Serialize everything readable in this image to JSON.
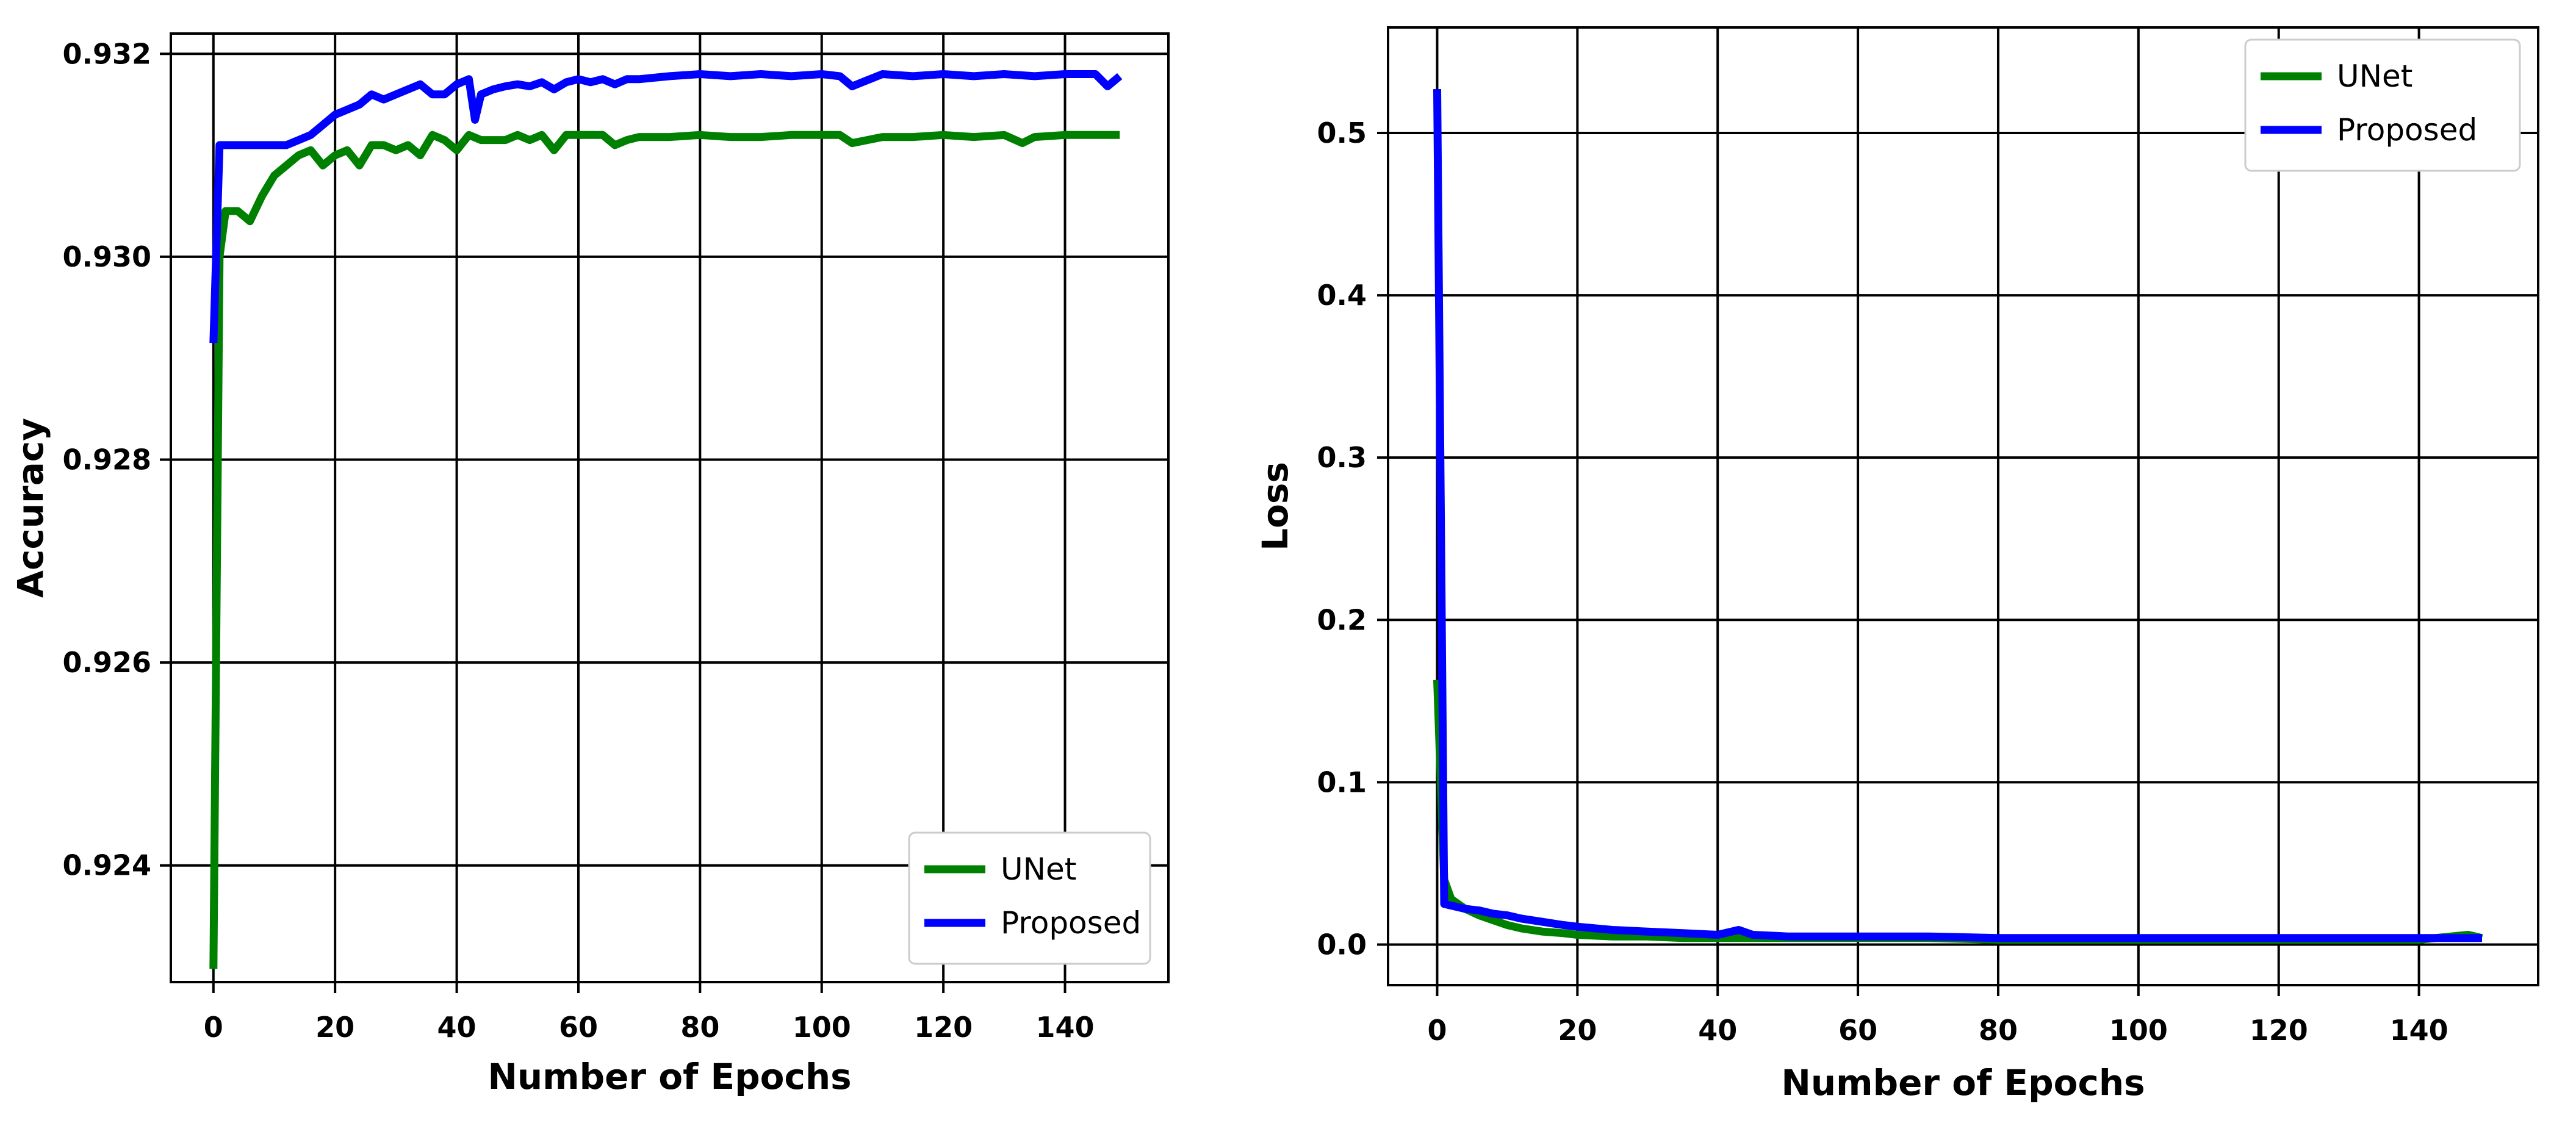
{
  "colors": {
    "unet": "#008000",
    "proposed": "#0000ff",
    "grid": "#000000"
  },
  "chart_data": [
    {
      "type": "line",
      "title": "",
      "xlabel": "Number of Epochs",
      "ylabel": "Accuracy",
      "xlim": [
        -7,
        157
      ],
      "ylim": [
        0.92285,
        0.9322
      ],
      "xticks": [
        0,
        20,
        40,
        60,
        80,
        100,
        120,
        140
      ],
      "xtick_labels": [
        "0",
        "20",
        "40",
        "60",
        "80",
        "100",
        "120",
        "140"
      ],
      "yticks": [
        0.924,
        0.926,
        0.928,
        0.93,
        0.932
      ],
      "ytick_labels": [
        "0.924",
        "0.926",
        "0.928",
        "0.930",
        "0.932"
      ],
      "grid": true,
      "legend": {
        "position": "lower-right",
        "entries": [
          "UNet",
          "Proposed"
        ]
      },
      "series": [
        {
          "name": "UNet",
          "color": "#008000",
          "x": [
            0,
            1,
            2,
            4,
            6,
            8,
            10,
            12,
            14,
            16,
            18,
            20,
            22,
            24,
            26,
            28,
            30,
            32,
            34,
            36,
            38,
            40,
            42,
            44,
            46,
            48,
            50,
            52,
            54,
            56,
            58,
            60,
            62,
            64,
            66,
            68,
            70,
            75,
            80,
            85,
            90,
            95,
            100,
            103,
            105,
            110,
            115,
            120,
            125,
            130,
            133,
            135,
            140,
            145,
            149
          ],
          "values": [
            0.92298,
            0.93,
            0.93045,
            0.93045,
            0.93035,
            0.9306,
            0.9308,
            0.9309,
            0.931,
            0.93105,
            0.9309,
            0.931,
            0.93105,
            0.9309,
            0.9311,
            0.9311,
            0.93105,
            0.9311,
            0.931,
            0.9312,
            0.93115,
            0.93105,
            0.9312,
            0.93115,
            0.93115,
            0.93115,
            0.9312,
            0.93115,
            0.9312,
            0.93105,
            0.9312,
            0.9312,
            0.9312,
            0.9312,
            0.9311,
            0.93115,
            0.93118,
            0.93118,
            0.9312,
            0.93118,
            0.93118,
            0.9312,
            0.9312,
            0.9312,
            0.93112,
            0.93118,
            0.93118,
            0.9312,
            0.93118,
            0.9312,
            0.93112,
            0.93118,
            0.9312,
            0.9312,
            0.9312
          ]
        },
        {
          "name": "Proposed",
          "color": "#0000ff",
          "x": [
            0,
            1,
            2,
            5,
            10,
            12,
            14,
            16,
            18,
            20,
            22,
            24,
            26,
            28,
            30,
            32,
            34,
            36,
            38,
            40,
            42,
            43,
            44,
            46,
            48,
            50,
            52,
            54,
            56,
            58,
            60,
            62,
            64,
            66,
            68,
            70,
            75,
            80,
            85,
            90,
            95,
            100,
            103,
            105,
            110,
            115,
            120,
            125,
            130,
            135,
            140,
            145,
            147,
            149
          ],
          "values": [
            0.92915,
            0.9311,
            0.9311,
            0.9311,
            0.9311,
            0.9311,
            0.93115,
            0.9312,
            0.9313,
            0.9314,
            0.93145,
            0.9315,
            0.9316,
            0.93155,
            0.9316,
            0.93165,
            0.9317,
            0.9316,
            0.9316,
            0.9317,
            0.93175,
            0.93135,
            0.9316,
            0.93165,
            0.93168,
            0.9317,
            0.93168,
            0.93172,
            0.93165,
            0.93172,
            0.93175,
            0.93172,
            0.93175,
            0.9317,
            0.93175,
            0.93175,
            0.93178,
            0.9318,
            0.93178,
            0.9318,
            0.93178,
            0.9318,
            0.93178,
            0.93168,
            0.9318,
            0.93178,
            0.9318,
            0.93178,
            0.9318,
            0.93178,
            0.9318,
            0.9318,
            0.93168,
            0.93178
          ]
        }
      ]
    },
    {
      "type": "line",
      "title": "",
      "xlabel": "Number of Epochs",
      "ylabel": "Loss",
      "xlim": [
        -7,
        157
      ],
      "ylim": [
        -0.025,
        0.565
      ],
      "xticks": [
        0,
        20,
        40,
        60,
        80,
        100,
        120,
        140
      ],
      "xtick_labels": [
        "0",
        "20",
        "40",
        "60",
        "80",
        "100",
        "120",
        "140"
      ],
      "yticks": [
        0.0,
        0.1,
        0.2,
        0.3,
        0.4,
        0.5
      ],
      "ytick_labels": [
        "0.0",
        "0.1",
        "0.2",
        "0.3",
        "0.4",
        "0.5"
      ],
      "grid": true,
      "legend": {
        "position": "upper-right",
        "entries": [
          "UNet",
          "Proposed"
        ]
      },
      "series": [
        {
          "name": "UNet",
          "color": "#008000",
          "x": [
            0,
            1,
            2,
            4,
            6,
            8,
            10,
            12,
            15,
            18,
            20,
            25,
            30,
            35,
            40,
            45,
            50,
            60,
            70,
            80,
            90,
            100,
            110,
            120,
            130,
            140,
            147,
            149
          ],
          "values": [
            0.163,
            0.04,
            0.028,
            0.022,
            0.018,
            0.015,
            0.012,
            0.01,
            0.008,
            0.007,
            0.006,
            0.005,
            0.005,
            0.004,
            0.004,
            0.004,
            0.004,
            0.004,
            0.004,
            0.003,
            0.003,
            0.003,
            0.003,
            0.003,
            0.003,
            0.003,
            0.006,
            0.004
          ]
        },
        {
          "name": "Proposed",
          "color": "#0000ff",
          "x": [
            0,
            1,
            2,
            4,
            6,
            8,
            10,
            12,
            15,
            18,
            20,
            25,
            30,
            35,
            40,
            43,
            45,
            50,
            60,
            70,
            80,
            90,
            100,
            110,
            120,
            130,
            140,
            149
          ],
          "values": [
            0.527,
            0.025,
            0.024,
            0.022,
            0.021,
            0.019,
            0.018,
            0.016,
            0.014,
            0.012,
            0.011,
            0.009,
            0.008,
            0.007,
            0.006,
            0.009,
            0.006,
            0.005,
            0.005,
            0.005,
            0.004,
            0.004,
            0.004,
            0.004,
            0.004,
            0.004,
            0.004,
            0.004
          ]
        }
      ]
    }
  ]
}
